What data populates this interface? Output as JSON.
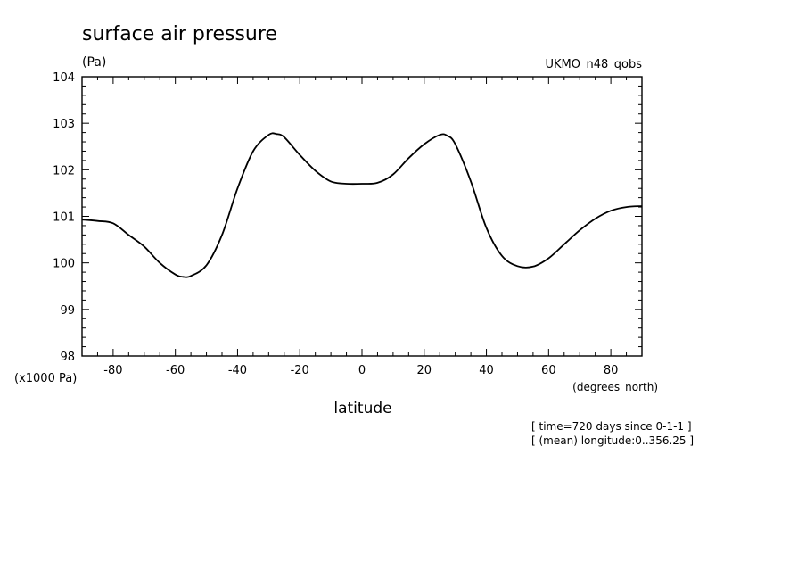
{
  "chart_data": {
    "type": "line",
    "title": "surface air pressure",
    "subtitle": "(Pa)",
    "model_label": "UKMO_n48_qobs",
    "xlabel": "latitude",
    "x_units_label": "(degrees_north)",
    "y_scale_label": "(x1000 Pa)",
    "xlim": [
      -90,
      90
    ],
    "ylim": [
      98,
      104
    ],
    "x_ticks": [
      -80,
      -60,
      -40,
      -20,
      0,
      20,
      40,
      60,
      80
    ],
    "x_tick_labels": [
      "-80",
      "-60",
      "-40",
      "-20",
      "0",
      "20",
      "40",
      "60",
      "80"
    ],
    "y_ticks": [
      98,
      99,
      100,
      101,
      102,
      103,
      104
    ],
    "y_tick_labels": [
      "98",
      "99",
      "100",
      "101",
      "102",
      "103",
      "104"
    ],
    "grid": false,
    "series": [
      {
        "x": [
          -90,
          -85,
          -80,
          -75,
          -70,
          -65,
          -60,
          -57.5,
          -55,
          -50,
          -45,
          -40,
          -35,
          -30,
          -27.5,
          -25,
          -20,
          -15,
          -10,
          -5,
          0,
          5,
          10,
          15,
          20,
          25,
          27.5,
          30,
          35,
          40,
          45,
          50,
          55,
          60,
          65,
          70,
          75,
          80,
          85,
          90
        ],
        "y": [
          100.93,
          100.9,
          100.85,
          100.6,
          100.35,
          100.0,
          99.75,
          99.7,
          99.72,
          99.95,
          100.6,
          101.6,
          102.4,
          102.75,
          102.77,
          102.7,
          102.32,
          101.98,
          101.75,
          101.7,
          101.7,
          101.72,
          101.9,
          102.25,
          102.55,
          102.75,
          102.73,
          102.55,
          101.75,
          100.75,
          100.15,
          99.93,
          99.92,
          100.1,
          100.4,
          100.7,
          100.95,
          101.12,
          101.2,
          101.22
        ]
      }
    ],
    "annotations": [
      "[ time=720 days since 0-1-1 ]",
      "[ (mean) longitude:0..356.25 ]"
    ]
  }
}
